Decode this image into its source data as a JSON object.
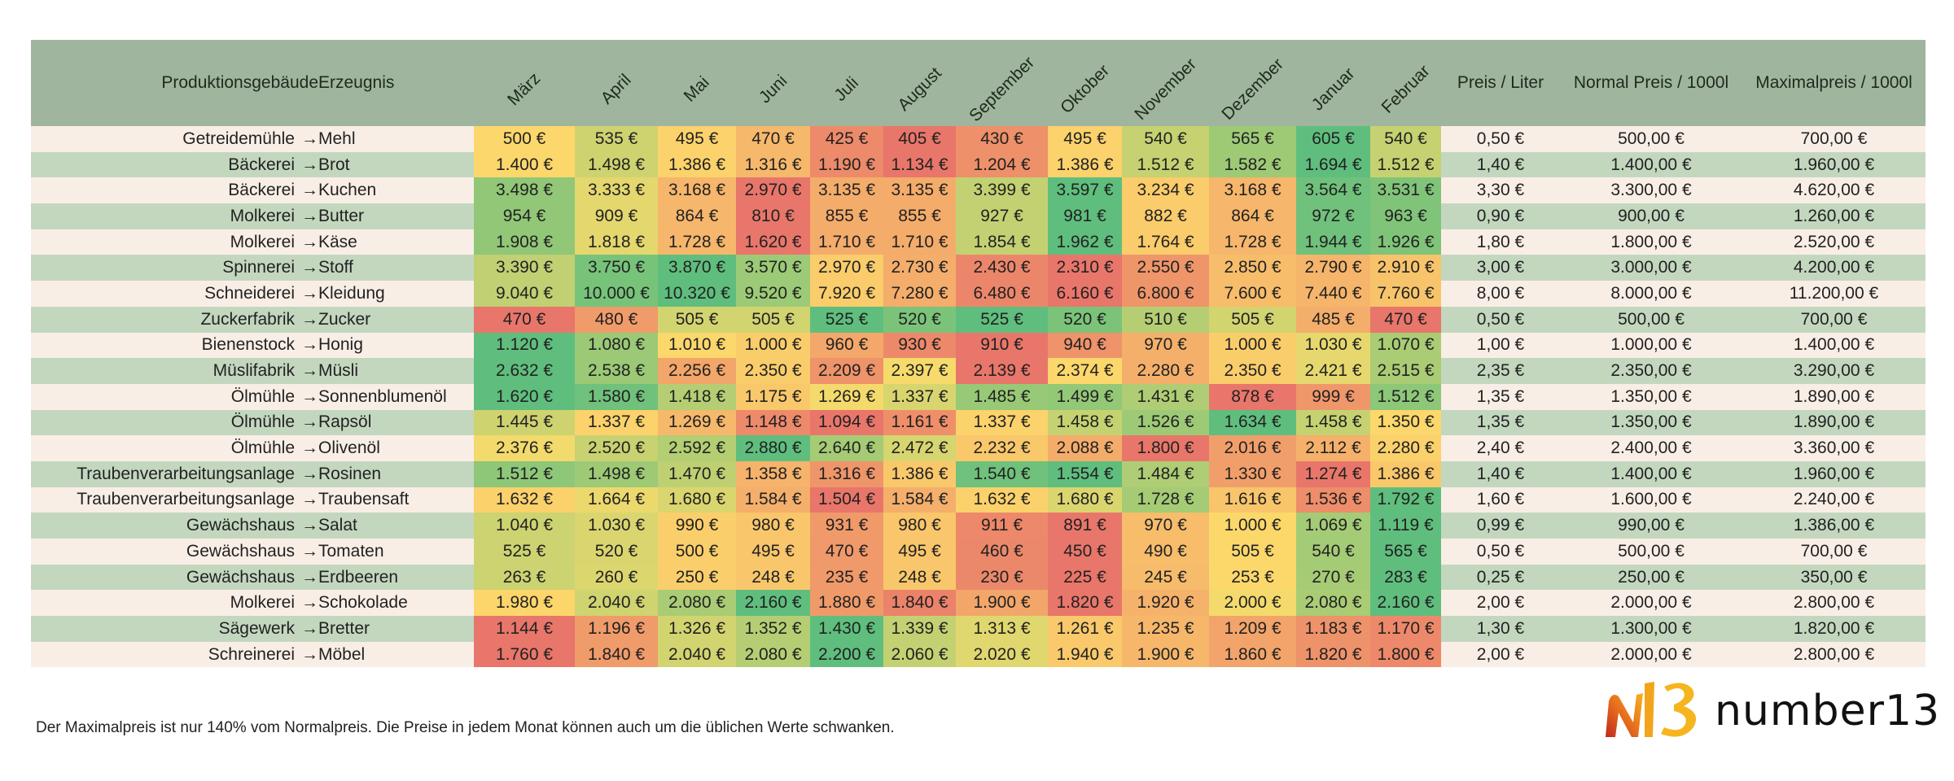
{
  "table": {
    "headers": {
      "building": "Produktionsgebäude",
      "product": "Erzeugnis",
      "months": [
        "März",
        "April",
        "Mai",
        "Juni",
        "Juli",
        "August",
        "September",
        "Oktober",
        "November",
        "Dezember",
        "Januar",
        "Februar"
      ],
      "price_liter": "Preis / Liter",
      "normal_price": "Normal Preis / 1000l",
      "max_price": "Maximalpreis / 1000l"
    },
    "arrow": "→",
    "rows": [
      {
        "building": "Getreidemühle",
        "product": "Mehl",
        "months": [
          "500 €",
          "535 €",
          "495 €",
          "470 €",
          "425 €",
          "405 €",
          "430 €",
          "495 €",
          "540 €",
          "565 €",
          "605 €",
          "540 €"
        ],
        "price_liter": "0,50 €",
        "normal": "500,00 €",
        "max": "700,00 €"
      },
      {
        "building": "Bäckerei",
        "product": "Brot",
        "months": [
          "1.400 €",
          "1.498 €",
          "1.386 €",
          "1.316 €",
          "1.190 €",
          "1.134 €",
          "1.204 €",
          "1.386 €",
          "1.512 €",
          "1.582 €",
          "1.694 €",
          "1.512 €"
        ],
        "price_liter": "1,40 €",
        "normal": "1.400,00 €",
        "max": "1.960,00 €"
      },
      {
        "building": "Bäckerei",
        "product": "Kuchen",
        "months": [
          "3.498 €",
          "3.333 €",
          "3.168 €",
          "2.970 €",
          "3.135 €",
          "3.135 €",
          "3.399 €",
          "3.597 €",
          "3.234 €",
          "3.168 €",
          "3.564 €",
          "3.531 €"
        ],
        "price_liter": "3,30 €",
        "normal": "3.300,00 €",
        "max": "4.620,00 €"
      },
      {
        "building": "Molkerei",
        "product": "Butter",
        "months": [
          "954 €",
          "909 €",
          "864 €",
          "810 €",
          "855 €",
          "855 €",
          "927 €",
          "981 €",
          "882 €",
          "864 €",
          "972 €",
          "963 €"
        ],
        "price_liter": "0,90 €",
        "normal": "900,00 €",
        "max": "1.260,00 €"
      },
      {
        "building": "Molkerei",
        "product": "Käse",
        "months": [
          "1.908 €",
          "1.818 €",
          "1.728 €",
          "1.620 €",
          "1.710 €",
          "1.710 €",
          "1.854 €",
          "1.962 €",
          "1.764 €",
          "1.728 €",
          "1.944 €",
          "1.926 €"
        ],
        "price_liter": "1,80 €",
        "normal": "1.800,00 €",
        "max": "2.520,00 €"
      },
      {
        "building": "Spinnerei",
        "product": "Stoff",
        "months": [
          "3.390 €",
          "3.750 €",
          "3.870 €",
          "3.570 €",
          "2.970 €",
          "2.730 €",
          "2.430 €",
          "2.310 €",
          "2.550 €",
          "2.850 €",
          "2.790 €",
          "2.910 €"
        ],
        "price_liter": "3,00 €",
        "normal": "3.000,00 €",
        "max": "4.200,00 €"
      },
      {
        "building": "Schneiderei",
        "product": "Kleidung",
        "months": [
          "9.040 €",
          "10.000 €",
          "10.320 €",
          "9.520 €",
          "7.920 €",
          "7.280 €",
          "6.480 €",
          "6.160 €",
          "6.800 €",
          "7.600 €",
          "7.440 €",
          "7.760 €"
        ],
        "price_liter": "8,00 €",
        "normal": "8.000,00 €",
        "max": "11.200,00 €"
      },
      {
        "building": "Zuckerfabrik",
        "product": "Zucker",
        "months": [
          "470 €",
          "480 €",
          "505 €",
          "505 €",
          "525 €",
          "520 €",
          "525 €",
          "520 €",
          "510 €",
          "505 €",
          "485 €",
          "470 €"
        ],
        "price_liter": "0,50 €",
        "normal": "500,00 €",
        "max": "700,00 €"
      },
      {
        "building": "Bienenstock",
        "product": "Honig",
        "months": [
          "1.120 €",
          "1.080 €",
          "1.010 €",
          "1.000 €",
          "960 €",
          "930 €",
          "910 €",
          "940 €",
          "970 €",
          "1.000 €",
          "1.030 €",
          "1.070 €"
        ],
        "price_liter": "1,00 €",
        "normal": "1.000,00 €",
        "max": "1.400,00 €"
      },
      {
        "building": "Müslifabrik",
        "product": "Müsli",
        "months": [
          "2.632 €",
          "2.538 €",
          "2.256 €",
          "2.350 €",
          "2.209 €",
          "2.397 €",
          "2.139 €",
          "2.374 €",
          "2.280 €",
          "2.350 €",
          "2.421 €",
          "2.515 €"
        ],
        "price_liter": "2,35 €",
        "normal": "2.350,00 €",
        "max": "3.290,00 €"
      },
      {
        "building": "Ölmühle",
        "product": "Sonnenblumenöl",
        "months": [
          "1.620 €",
          "1.580 €",
          "1.418 €",
          "1.175 €",
          "1.269 €",
          "1.337 €",
          "1.485 €",
          "1.499 €",
          "1.431 €",
          "878 €",
          "999 €",
          "1.512 €"
        ],
        "price_liter": "1,35 €",
        "normal": "1.350,00 €",
        "max": "1.890,00 €"
      },
      {
        "building": "Ölmühle",
        "product": "Rapsöl",
        "months": [
          "1.445 €",
          "1.337 €",
          "1.269 €",
          "1.148 €",
          "1.094 €",
          "1.161 €",
          "1.337 €",
          "1.458 €",
          "1.526 €",
          "1.634 €",
          "1.458 €",
          "1.350 €"
        ],
        "price_liter": "1,35 €",
        "normal": "1.350,00 €",
        "max": "1.890,00 €"
      },
      {
        "building": "Ölmühle",
        "product": "Olivenöl",
        "months": [
          "2.376 €",
          "2.520 €",
          "2.592 €",
          "2.880 €",
          "2.640 €",
          "2.472 €",
          "2.232 €",
          "2.088 €",
          "1.800 €",
          "2.016 €",
          "2.112 €",
          "2.280 €"
        ],
        "price_liter": "2,40 €",
        "normal": "2.400,00 €",
        "max": "3.360,00 €"
      },
      {
        "building": "Traubenverarbeitungsanlage",
        "product": "Rosinen",
        "months": [
          "1.512 €",
          "1.498 €",
          "1.470 €",
          "1.358 €",
          "1.316 €",
          "1.386 €",
          "1.540 €",
          "1.554 €",
          "1.484 €",
          "1.330 €",
          "1.274 €",
          "1.386 €"
        ],
        "price_liter": "1,40 €",
        "normal": "1.400,00 €",
        "max": "1.960,00 €"
      },
      {
        "building": "Traubenverarbeitungsanlage",
        "product": "Traubensaft",
        "months": [
          "1.632 €",
          "1.664 €",
          "1.680 €",
          "1.584 €",
          "1.504 €",
          "1.584 €",
          "1.632 €",
          "1.680 €",
          "1.728 €",
          "1.616 €",
          "1.536 €",
          "1.792 €"
        ],
        "price_liter": "1,60 €",
        "normal": "1.600,00 €",
        "max": "2.240,00 €"
      },
      {
        "building": "Gewächshaus",
        "product": "Salat",
        "months": [
          "1.040 €",
          "1.030 €",
          "990 €",
          "980 €",
          "931 €",
          "980 €",
          "911 €",
          "891 €",
          "970 €",
          "1.000 €",
          "1.069 €",
          "1.119 €"
        ],
        "price_liter": "0,99 €",
        "normal": "990,00 €",
        "max": "1.386,00 €"
      },
      {
        "building": "Gewächshaus",
        "product": "Tomaten",
        "months": [
          "525 €",
          "520 €",
          "500 €",
          "495 €",
          "470 €",
          "495 €",
          "460 €",
          "450 €",
          "490 €",
          "505 €",
          "540 €",
          "565 €"
        ],
        "price_liter": "0,50 €",
        "normal": "500,00 €",
        "max": "700,00 €"
      },
      {
        "building": "Gewächshaus",
        "product": "Erdbeeren",
        "months": [
          "263 €",
          "260 €",
          "250 €",
          "248 €",
          "235 €",
          "248 €",
          "230 €",
          "225 €",
          "245 €",
          "253 €",
          "270 €",
          "283 €"
        ],
        "price_liter": "0,25 €",
        "normal": "250,00 €",
        "max": "350,00 €"
      },
      {
        "building": "Molkerei",
        "product": "Schokolade",
        "months": [
          "1.980 €",
          "2.040 €",
          "2.080 €",
          "2.160 €",
          "1.880 €",
          "1.840 €",
          "1.900 €",
          "1.820 €",
          "1.920 €",
          "2.000 €",
          "2.080 €",
          "2.160 €"
        ],
        "price_liter": "2,00 €",
        "normal": "2.000,00 €",
        "max": "2.800,00 €"
      },
      {
        "building": "Sägewerk",
        "product": "Bretter",
        "months": [
          "1.144 €",
          "1.196 €",
          "1.326 €",
          "1.352 €",
          "1.430 €",
          "1.339 €",
          "1.313 €",
          "1.261 €",
          "1.235 €",
          "1.209 €",
          "1.183 €",
          "1.170 €"
        ],
        "price_liter": "1,30 €",
        "normal": "1.300,00 €",
        "max": "1.820,00 €"
      },
      {
        "building": "Schreinerei",
        "product": "Möbel",
        "months": [
          "1.760 €",
          "1.840 €",
          "2.040 €",
          "2.080 €",
          "2.200 €",
          "2.060 €",
          "2.020 €",
          "1.940 €",
          "1.900 €",
          "1.860 €",
          "1.820 €",
          "1.800 €"
        ],
        "price_liter": "2,00 €",
        "normal": "2.000,00 €",
        "max": "2.800,00 €"
      }
    ]
  },
  "footnote": "Der Maximalpreis ist nur 140% vom Normalpreis. Die Preise in jedem Monat können auch um die üblichen Werte schwanken.",
  "logo": {
    "text": "number13",
    "mark": "N13"
  },
  "colors": {
    "header_bg": "#a0b59d",
    "row_light": "#f9eee6",
    "row_green": "#c3d7bf",
    "heat_low": "#e9766a",
    "heat_mid": "#fddc6b",
    "heat_high": "#5fbe7d"
  }
}
